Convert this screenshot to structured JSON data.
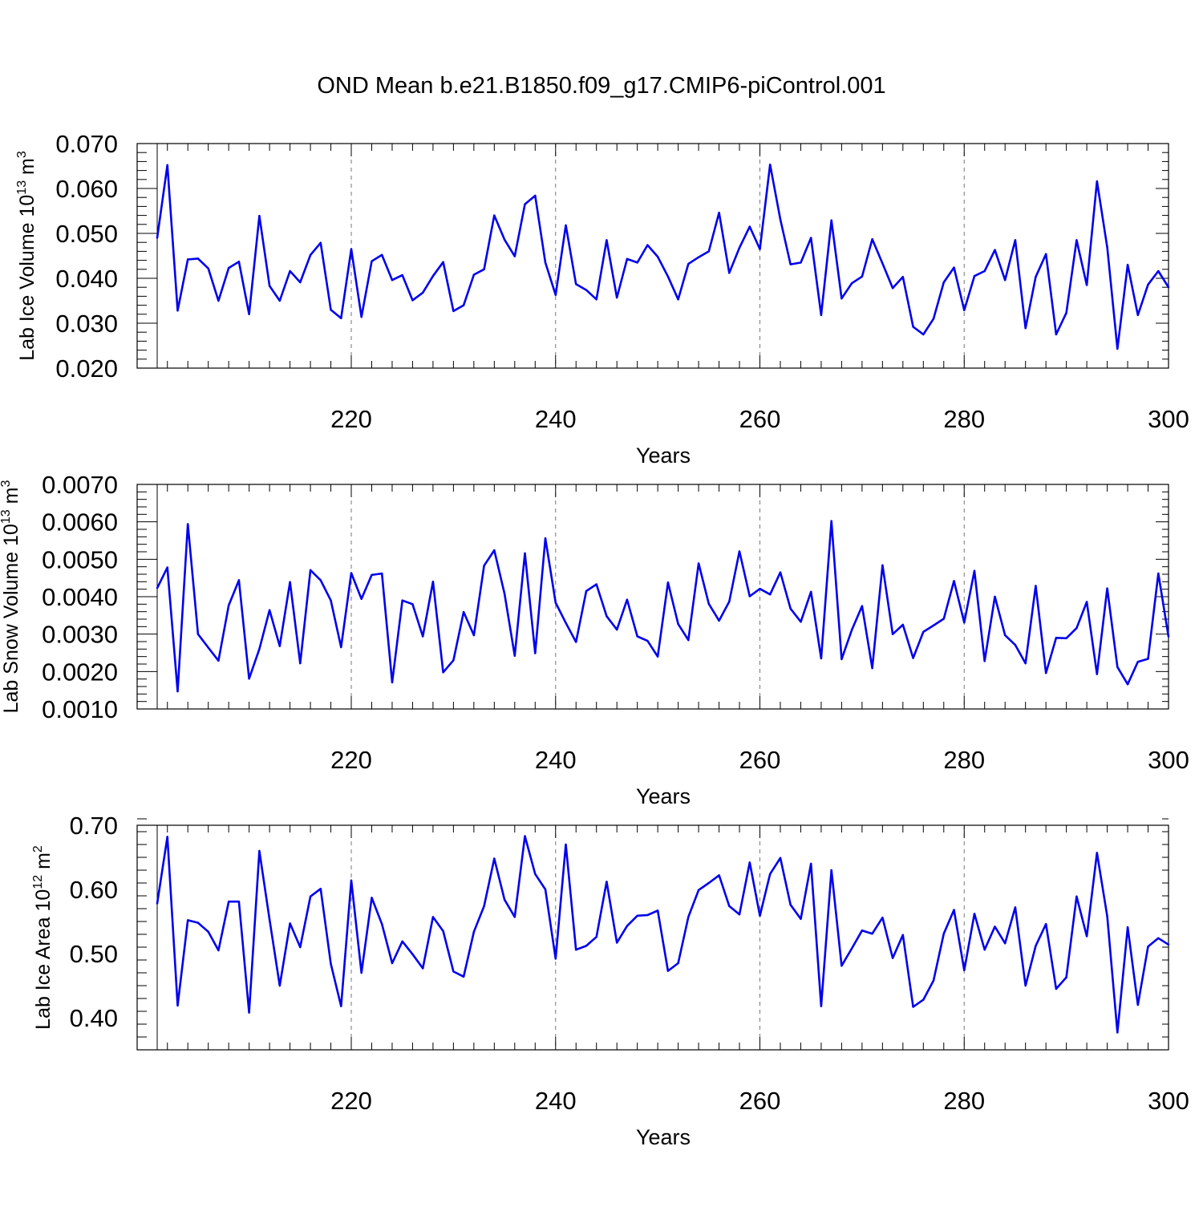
{
  "title": "OND Mean b.e21.B1850.f09_g17.CMIP6-piControl.001",
  "colors": {
    "line": "#0000ee",
    "axis": "#000000",
    "grid": "#777777"
  },
  "chart_data": [
    {
      "type": "line",
      "ylabel": {
        "prefix": "Lab Ice Volume 10",
        "exp": "13",
        "unit": " m",
        "unit_exp": "3"
      },
      "xlabel": "Years",
      "xlim": [
        201,
        300
      ],
      "ylim": [
        0.02,
        0.07
      ],
      "xticks": [
        "220",
        "240",
        "260",
        "280",
        "300"
      ],
      "yticks": [
        "0.020",
        "0.030",
        "0.040",
        "0.050",
        "0.060",
        "0.070"
      ],
      "grid_x": [
        220,
        240,
        260,
        280
      ],
      "x_start": 201,
      "values": [
        0.049,
        0.0652,
        0.0328,
        0.0442,
        0.0444,
        0.0422,
        0.035,
        0.0423,
        0.0437,
        0.032,
        0.0539,
        0.0383,
        0.035,
        0.0416,
        0.0391,
        0.0452,
        0.0479,
        0.033,
        0.0311,
        0.0465,
        0.0314,
        0.0438,
        0.0452,
        0.0396,
        0.0407,
        0.0351,
        0.0368,
        0.0405,
        0.0436,
        0.0327,
        0.034,
        0.0408,
        0.042,
        0.054,
        0.0486,
        0.0449,
        0.0565,
        0.0584,
        0.0435,
        0.0363,
        0.0518,
        0.0387,
        0.0374,
        0.0353,
        0.0485,
        0.0357,
        0.0443,
        0.0435,
        0.0474,
        0.0448,
        0.0404,
        0.0353,
        0.0432,
        0.0447,
        0.046,
        0.0546,
        0.0412,
        0.0468,
        0.0515,
        0.0465,
        0.0653,
        0.0531,
        0.0431,
        0.0435,
        0.049,
        0.0318,
        0.0529,
        0.0355,
        0.0389,
        0.0404,
        0.0487,
        0.0433,
        0.0378,
        0.0403,
        0.0292,
        0.0275,
        0.031,
        0.0391,
        0.0424,
        0.0329,
        0.0405,
        0.0416,
        0.0463,
        0.0396,
        0.0485,
        0.0289,
        0.0403,
        0.0454,
        0.0275,
        0.0323,
        0.0485,
        0.0385,
        0.0616,
        0.0469,
        0.0243,
        0.043,
        0.0318,
        0.0386,
        0.0416,
        0.038
      ]
    },
    {
      "type": "line",
      "ylabel": {
        "prefix": "Lab Snow Volume 10",
        "exp": "13",
        "unit": " m",
        "unit_exp": "3"
      },
      "xlabel": "Years",
      "xlim": [
        201,
        300
      ],
      "ylim": [
        0.001,
        0.007
      ],
      "xticks": [
        "220",
        "240",
        "260",
        "280",
        "300"
      ],
      "yticks": [
        "0.0010",
        "0.0020",
        "0.0030",
        "0.0040",
        "0.0050",
        "0.0060",
        "0.0070"
      ],
      "grid_x": [
        220,
        240,
        260,
        280
      ],
      "x_start": 201,
      "values": [
        0.00423,
        0.00478,
        0.00147,
        0.00594,
        0.003,
        0.00264,
        0.00229,
        0.00377,
        0.00444,
        0.00181,
        0.0026,
        0.00364,
        0.00268,
        0.00439,
        0.00222,
        0.00471,
        0.00444,
        0.0039,
        0.00265,
        0.00463,
        0.00394,
        0.00458,
        0.00462,
        0.00171,
        0.0039,
        0.0038,
        0.00294,
        0.0044,
        0.00198,
        0.0023,
        0.00359,
        0.00297,
        0.00483,
        0.00524,
        0.00408,
        0.00242,
        0.00516,
        0.00249,
        0.00556,
        0.00384,
        0.0033,
        0.00279,
        0.00415,
        0.00433,
        0.00348,
        0.00312,
        0.00392,
        0.00294,
        0.00282,
        0.0024,
        0.00438,
        0.00327,
        0.00284,
        0.00489,
        0.00381,
        0.00336,
        0.00387,
        0.00521,
        0.00401,
        0.00421,
        0.00406,
        0.00465,
        0.00368,
        0.00333,
        0.00413,
        0.00235,
        0.00602,
        0.00233,
        0.00311,
        0.00375,
        0.00209,
        0.00484,
        0.003,
        0.00325,
        0.00236,
        0.00306,
        0.00323,
        0.00341,
        0.00442,
        0.00331,
        0.00469,
        0.00228,
        0.004,
        0.00297,
        0.00271,
        0.00222,
        0.00429,
        0.00196,
        0.0029,
        0.00289,
        0.00316,
        0.00386,
        0.00193,
        0.00422,
        0.00212,
        0.00166,
        0.00226,
        0.00234,
        0.00462,
        0.00293
      ]
    },
    {
      "type": "line",
      "ylabel": {
        "prefix": "Lab Ice Area 10",
        "exp": "12",
        "unit": " m",
        "unit_exp": "2"
      },
      "xlabel": "Years",
      "xlim": [
        201,
        300
      ],
      "ylim": [
        0.35,
        0.7
      ],
      "xticks": [
        "220",
        "240",
        "260",
        "280",
        "300"
      ],
      "yticks": [
        "0.40",
        "0.50",
        "0.60",
        "0.70"
      ],
      "grid_x": [
        220,
        240,
        260,
        280
      ],
      "x_start": 201,
      "values": [
        0.578,
        0.682,
        0.419,
        0.552,
        0.548,
        0.534,
        0.505,
        0.581,
        0.581,
        0.408,
        0.66,
        0.553,
        0.45,
        0.547,
        0.51,
        0.589,
        0.601,
        0.484,
        0.418,
        0.614,
        0.47,
        0.587,
        0.546,
        0.485,
        0.519,
        0.499,
        0.477,
        0.557,
        0.535,
        0.472,
        0.464,
        0.534,
        0.574,
        0.648,
        0.584,
        0.557,
        0.683,
        0.624,
        0.6,
        0.492,
        0.67,
        0.506,
        0.512,
        0.526,
        0.612,
        0.517,
        0.543,
        0.559,
        0.56,
        0.567,
        0.473,
        0.485,
        0.557,
        0.599,
        0.61,
        0.622,
        0.574,
        0.561,
        0.642,
        0.559,
        0.624,
        0.649,
        0.576,
        0.554,
        0.64,
        0.418,
        0.63,
        0.481,
        0.508,
        0.536,
        0.531,
        0.556,
        0.493,
        0.529,
        0.417,
        0.428,
        0.458,
        0.531,
        0.568,
        0.474,
        0.562,
        0.506,
        0.542,
        0.516,
        0.572,
        0.45,
        0.512,
        0.546,
        0.445,
        0.463,
        0.589,
        0.527,
        0.657,
        0.558,
        0.377,
        0.541,
        0.42,
        0.511,
        0.524,
        0.514
      ]
    }
  ]
}
